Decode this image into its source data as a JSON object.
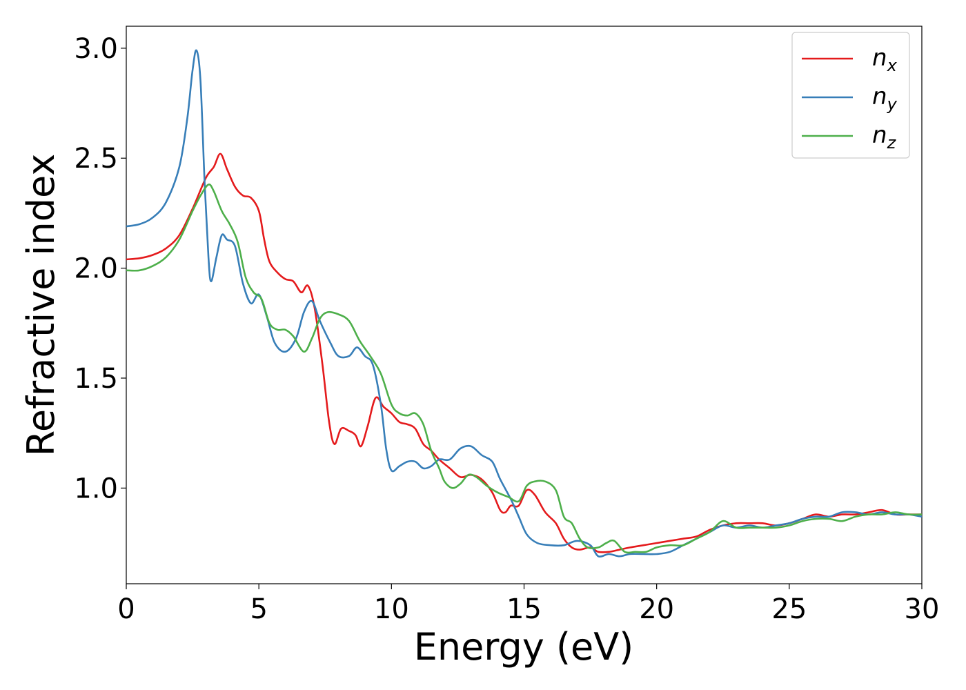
{
  "chart_data": {
    "type": "line",
    "xlabel": "Energy (eV)",
    "ylabel": "Refractive index",
    "xlim": [
      0,
      30
    ],
    "ylim": [
      0.565,
      3.1
    ],
    "xticks": [
      0,
      5,
      10,
      15,
      20,
      25,
      30
    ],
    "yticks": [
      1.0,
      1.5,
      2.0,
      2.5,
      3.0
    ],
    "xtick_labels": [
      "0",
      "5",
      "10",
      "15",
      "20",
      "25",
      "30"
    ],
    "ytick_labels": [
      "1.0",
      "1.5",
      "2.0",
      "2.5",
      "3.0"
    ],
    "grid": false,
    "legend_position": "top-right",
    "series": [
      {
        "name": "n_x",
        "legend_main": "n",
        "legend_sub": "x",
        "color": "#e41a1c",
        "points": [
          [
            0,
            2.04
          ],
          [
            0.5,
            2.045
          ],
          [
            1,
            2.06
          ],
          [
            1.5,
            2.09
          ],
          [
            2,
            2.15
          ],
          [
            2.5,
            2.27
          ],
          [
            3,
            2.41
          ],
          [
            3.3,
            2.46
          ],
          [
            3.55,
            2.52
          ],
          [
            3.8,
            2.45
          ],
          [
            4.1,
            2.37
          ],
          [
            4.4,
            2.33
          ],
          [
            4.7,
            2.32
          ],
          [
            5.0,
            2.26
          ],
          [
            5.2,
            2.13
          ],
          [
            5.4,
            2.03
          ],
          [
            5.7,
            1.98
          ],
          [
            6.0,
            1.95
          ],
          [
            6.3,
            1.94
          ],
          [
            6.6,
            1.89
          ],
          [
            6.85,
            1.92
          ],
          [
            7.1,
            1.82
          ],
          [
            7.4,
            1.56
          ],
          [
            7.65,
            1.3
          ],
          [
            7.85,
            1.2
          ],
          [
            8.1,
            1.27
          ],
          [
            8.4,
            1.26
          ],
          [
            8.65,
            1.24
          ],
          [
            8.85,
            1.19
          ],
          [
            9.1,
            1.28
          ],
          [
            9.4,
            1.41
          ],
          [
            9.7,
            1.37
          ],
          [
            10.0,
            1.34
          ],
          [
            10.3,
            1.3
          ],
          [
            10.6,
            1.29
          ],
          [
            10.9,
            1.27
          ],
          [
            11.2,
            1.2
          ],
          [
            11.5,
            1.17
          ],
          [
            11.8,
            1.13
          ],
          [
            12.2,
            1.09
          ],
          [
            12.6,
            1.05
          ],
          [
            13.0,
            1.06
          ],
          [
            13.4,
            1.04
          ],
          [
            13.8,
            0.98
          ],
          [
            14.1,
            0.9
          ],
          [
            14.3,
            0.89
          ],
          [
            14.5,
            0.92
          ],
          [
            14.8,
            0.92
          ],
          [
            15.1,
            0.99
          ],
          [
            15.4,
            0.97
          ],
          [
            15.8,
            0.89
          ],
          [
            16.2,
            0.84
          ],
          [
            16.5,
            0.77
          ],
          [
            16.8,
            0.73
          ],
          [
            17.1,
            0.72
          ],
          [
            17.5,
            0.73
          ],
          [
            17.8,
            0.71
          ],
          [
            18.2,
            0.71
          ],
          [
            18.6,
            0.72
          ],
          [
            19.0,
            0.73
          ],
          [
            19.5,
            0.74
          ],
          [
            20.0,
            0.75
          ],
          [
            20.5,
            0.76
          ],
          [
            21.0,
            0.77
          ],
          [
            21.5,
            0.78
          ],
          [
            22.0,
            0.81
          ],
          [
            22.5,
            0.83
          ],
          [
            23.0,
            0.84
          ],
          [
            23.5,
            0.84
          ],
          [
            24.0,
            0.84
          ],
          [
            24.5,
            0.83
          ],
          [
            25.0,
            0.84
          ],
          [
            25.5,
            0.86
          ],
          [
            26.0,
            0.88
          ],
          [
            26.5,
            0.87
          ],
          [
            27.0,
            0.88
          ],
          [
            27.5,
            0.88
          ],
          [
            28.0,
            0.89
          ],
          [
            28.5,
            0.9
          ],
          [
            29.0,
            0.88
          ],
          [
            29.5,
            0.88
          ],
          [
            30.0,
            0.88
          ]
        ]
      },
      {
        "name": "n_y",
        "legend_main": "n",
        "legend_sub": "y",
        "color": "#377eb8",
        "points": [
          [
            0,
            2.19
          ],
          [
            0.5,
            2.2
          ],
          [
            1.0,
            2.23
          ],
          [
            1.5,
            2.3
          ],
          [
            2.0,
            2.46
          ],
          [
            2.3,
            2.68
          ],
          [
            2.5,
            2.9
          ],
          [
            2.65,
            2.99
          ],
          [
            2.8,
            2.85
          ],
          [
            2.95,
            2.4
          ],
          [
            3.1,
            2.05
          ],
          [
            3.2,
            1.94
          ],
          [
            3.4,
            2.05
          ],
          [
            3.6,
            2.15
          ],
          [
            3.8,
            2.13
          ],
          [
            4.1,
            2.1
          ],
          [
            4.4,
            1.93
          ],
          [
            4.7,
            1.84
          ],
          [
            5.0,
            1.88
          ],
          [
            5.3,
            1.78
          ],
          [
            5.6,
            1.66
          ],
          [
            6.0,
            1.62
          ],
          [
            6.4,
            1.68
          ],
          [
            6.7,
            1.8
          ],
          [
            7.0,
            1.85
          ],
          [
            7.3,
            1.76
          ],
          [
            7.7,
            1.66
          ],
          [
            8.0,
            1.6
          ],
          [
            8.4,
            1.6
          ],
          [
            8.7,
            1.64
          ],
          [
            9.0,
            1.6
          ],
          [
            9.3,
            1.56
          ],
          [
            9.6,
            1.38
          ],
          [
            9.8,
            1.18
          ],
          [
            10.0,
            1.08
          ],
          [
            10.3,
            1.1
          ],
          [
            10.6,
            1.12
          ],
          [
            10.9,
            1.12
          ],
          [
            11.2,
            1.09
          ],
          [
            11.5,
            1.1
          ],
          [
            11.8,
            1.13
          ],
          [
            12.2,
            1.13
          ],
          [
            12.6,
            1.18
          ],
          [
            13.0,
            1.19
          ],
          [
            13.4,
            1.15
          ],
          [
            13.8,
            1.12
          ],
          [
            14.1,
            1.04
          ],
          [
            14.5,
            0.95
          ],
          [
            14.8,
            0.87
          ],
          [
            15.1,
            0.79
          ],
          [
            15.5,
            0.75
          ],
          [
            16.0,
            0.74
          ],
          [
            16.5,
            0.74
          ],
          [
            17.0,
            0.76
          ],
          [
            17.5,
            0.74
          ],
          [
            17.8,
            0.69
          ],
          [
            18.2,
            0.7
          ],
          [
            18.6,
            0.69
          ],
          [
            19.0,
            0.7
          ],
          [
            19.5,
            0.7
          ],
          [
            20.0,
            0.7
          ],
          [
            20.5,
            0.71
          ],
          [
            21.0,
            0.74
          ],
          [
            21.5,
            0.77
          ],
          [
            22.0,
            0.8
          ],
          [
            22.5,
            0.83
          ],
          [
            23.0,
            0.82
          ],
          [
            23.5,
            0.83
          ],
          [
            24.0,
            0.82
          ],
          [
            24.5,
            0.83
          ],
          [
            25.0,
            0.84
          ],
          [
            25.5,
            0.86
          ],
          [
            26.0,
            0.87
          ],
          [
            26.5,
            0.87
          ],
          [
            27.0,
            0.89
          ],
          [
            27.5,
            0.89
          ],
          [
            28.0,
            0.88
          ],
          [
            28.5,
            0.89
          ],
          [
            29.0,
            0.88
          ],
          [
            29.5,
            0.88
          ],
          [
            30.0,
            0.87
          ]
        ]
      },
      {
        "name": "n_z",
        "legend_main": "n",
        "legend_sub": "z",
        "color": "#4daf4a",
        "points": [
          [
            0,
            1.99
          ],
          [
            0.5,
            1.99
          ],
          [
            1.0,
            2.01
          ],
          [
            1.5,
            2.05
          ],
          [
            2.0,
            2.13
          ],
          [
            2.5,
            2.26
          ],
          [
            2.8,
            2.33
          ],
          [
            3.1,
            2.38
          ],
          [
            3.3,
            2.35
          ],
          [
            3.6,
            2.26
          ],
          [
            3.9,
            2.2
          ],
          [
            4.2,
            2.12
          ],
          [
            4.5,
            1.96
          ],
          [
            4.8,
            1.89
          ],
          [
            5.1,
            1.86
          ],
          [
            5.4,
            1.75
          ],
          [
            5.7,
            1.72
          ],
          [
            6.0,
            1.72
          ],
          [
            6.3,
            1.69
          ],
          [
            6.7,
            1.62
          ],
          [
            7.0,
            1.68
          ],
          [
            7.3,
            1.77
          ],
          [
            7.6,
            1.8
          ],
          [
            8.0,
            1.79
          ],
          [
            8.4,
            1.76
          ],
          [
            8.8,
            1.67
          ],
          [
            9.2,
            1.6
          ],
          [
            9.6,
            1.52
          ],
          [
            10.0,
            1.38
          ],
          [
            10.3,
            1.34
          ],
          [
            10.6,
            1.33
          ],
          [
            10.9,
            1.34
          ],
          [
            11.2,
            1.29
          ],
          [
            11.5,
            1.17
          ],
          [
            11.8,
            1.09
          ],
          [
            12.0,
            1.03
          ],
          [
            12.3,
            1.0
          ],
          [
            12.6,
            1.02
          ],
          [
            12.9,
            1.06
          ],
          [
            13.2,
            1.05
          ],
          [
            13.6,
            1.01
          ],
          [
            14.0,
            0.98
          ],
          [
            14.4,
            0.96
          ],
          [
            14.8,
            0.94
          ],
          [
            15.1,
            1.01
          ],
          [
            15.4,
            1.03
          ],
          [
            15.8,
            1.03
          ],
          [
            16.2,
            0.99
          ],
          [
            16.5,
            0.87
          ],
          [
            16.8,
            0.84
          ],
          [
            17.1,
            0.77
          ],
          [
            17.4,
            0.73
          ],
          [
            17.8,
            0.73
          ],
          [
            18.1,
            0.75
          ],
          [
            18.4,
            0.76
          ],
          [
            18.8,
            0.71
          ],
          [
            19.2,
            0.71
          ],
          [
            19.6,
            0.71
          ],
          [
            20.0,
            0.73
          ],
          [
            20.5,
            0.74
          ],
          [
            21.0,
            0.74
          ],
          [
            21.5,
            0.77
          ],
          [
            22.0,
            0.8
          ],
          [
            22.5,
            0.85
          ],
          [
            23.0,
            0.82
          ],
          [
            23.5,
            0.82
          ],
          [
            24.0,
            0.82
          ],
          [
            24.5,
            0.82
          ],
          [
            25.0,
            0.83
          ],
          [
            25.5,
            0.85
          ],
          [
            26.0,
            0.86
          ],
          [
            26.5,
            0.86
          ],
          [
            27.0,
            0.85
          ],
          [
            27.5,
            0.87
          ],
          [
            28.0,
            0.88
          ],
          [
            28.5,
            0.88
          ],
          [
            29.0,
            0.89
          ],
          [
            29.5,
            0.88
          ],
          [
            30.0,
            0.88
          ]
        ]
      }
    ]
  }
}
